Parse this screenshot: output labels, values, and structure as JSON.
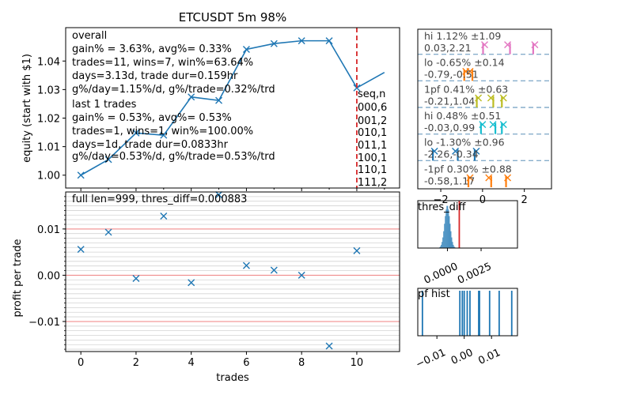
{
  "figure": {
    "title": "ETCUSDT 5m 98%"
  },
  "colors": {
    "line": "#1f77b4",
    "marker": "#1f77b4",
    "vline": "#d62728",
    "hline": "#f08080",
    "grid": "#d3d3d3",
    "dashed": "#87aecb"
  },
  "chart_data": [
    {
      "type": "line",
      "ylabel": "equity (start with $1)",
      "x": [
        0,
        1,
        2,
        3,
        4,
        5,
        6,
        7,
        8,
        9,
        10,
        11
      ],
      "values": [
        1.0,
        1.0055,
        1.0148,
        1.014,
        1.0274,
        1.0262,
        1.0441,
        1.0461,
        1.0471,
        1.0471,
        1.0306,
        1.036
      ],
      "xlim": [
        -0.55,
        11.55
      ],
      "ylim": [
        0.9955,
        1.0517
      ],
      "yticks": [
        "1.00",
        "1.01",
        "1.02",
        "1.03",
        "1.04"
      ],
      "vline_x": 10,
      "overall_label": "overall",
      "overall_lines": [
        "gain% = 3.63%, avg%= 0.33%",
        "trades=11, wins=7, win%=63.64%",
        "days=3.13d, trade dur=0.159hr",
        "g%/day=1.15%/d, g%/trade=0.32%/trd"
      ],
      "last_label": "last 1 trades",
      "last_lines": [
        "gain% = 0.53%, avg%= 0.53%",
        "trades=1, wins=1, win%=100.00%",
        "days=1d, trade dur=0.0833hr",
        "g%/day=0.53%/d, g%/trade=0.53%/trd"
      ],
      "seq_header": "seq,n",
      "seq_items": [
        "000,6",
        "001,2",
        "010,1",
        "011,1",
        "100,1",
        "110,1",
        "111,2"
      ]
    },
    {
      "type": "scatter",
      "ylabel": "profit per trade",
      "xlabel": "trades",
      "annotation": "full len=999, thres_diff=0.000883",
      "x": [
        0,
        1,
        2,
        3,
        4,
        5,
        6,
        7,
        8,
        9,
        10
      ],
      "values": [
        0.0056,
        0.0093,
        -0.0007,
        0.0128,
        -0.0016,
        0.0174,
        0.0021,
        0.0011,
        0.0,
        -0.0153,
        0.0053
      ],
      "xlim": [
        -0.55,
        11.55
      ],
      "ylim": [
        -0.0165,
        0.018
      ],
      "xticks": [
        "0",
        "2",
        "4",
        "6",
        "8",
        "10"
      ],
      "yticks": [
        "0.01",
        "0.00",
        "−0.01"
      ],
      "hlines": [
        0.01,
        0.0,
        -0.01
      ]
    },
    {
      "type": "scatter",
      "title": "",
      "rows": [
        {
          "label_line1": "hi 1.12% ±1.09",
          "label_line2": "0.03,2.21",
          "color": "#e377c2",
          "points": [
            0.1,
            1.2,
            2.5
          ]
        },
        {
          "label_line1": "lo -0.65% ±0.14",
          "label_line2": "-0.79,-0.51",
          "color": "#ff7f0e",
          "points": [
            -0.8,
            -0.6
          ]
        },
        {
          "label_line1": "1pf 0.41% ±0.63",
          "label_line2": "-0.21,1.04",
          "color": "#bcbd22",
          "points": [
            -0.2,
            0.4,
            1.0
          ]
        },
        {
          "label_line1": "hi 0.48% ±0.51",
          "label_line2": "-0.03,0.99",
          "color": "#17becf",
          "points": [
            0.0,
            0.5,
            1.0
          ]
        },
        {
          "label_line1": "lo -1.30% ±0.96",
          "label_line2": "-2.26,-0.34",
          "color": "#1f77b4",
          "points": [
            -2.3,
            -1.3,
            -0.3
          ]
        },
        {
          "label_line1": "-1pf 0.30% ±0.88",
          "label_line2": "-0.58,1.17",
          "color": "#ff7f0e",
          "points": [
            -0.6,
            0.3,
            1.2
          ]
        }
      ],
      "xticks": [
        "−2",
        "0",
        "2"
      ],
      "xlim": [
        -3.1,
        3.3
      ]
    },
    {
      "type": "bar",
      "title": "thres_diff",
      "xticks": [
        "0.0000",
        "0.0025"
      ],
      "xlim": [
        -0.0022,
        0.0052
      ],
      "vline_x": 0.00088
    },
    {
      "type": "bar",
      "title": "pf hist",
      "xticks": [
        "−0.01",
        "0.00",
        "0.01"
      ],
      "xlim": [
        -0.017,
        0.0195
      ],
      "values": [
        -0.0153,
        -0.0016,
        -0.0007,
        0.0,
        0.0011,
        0.0021,
        0.0053,
        0.0056,
        0.0093,
        0.0128,
        0.0174
      ]
    }
  ]
}
